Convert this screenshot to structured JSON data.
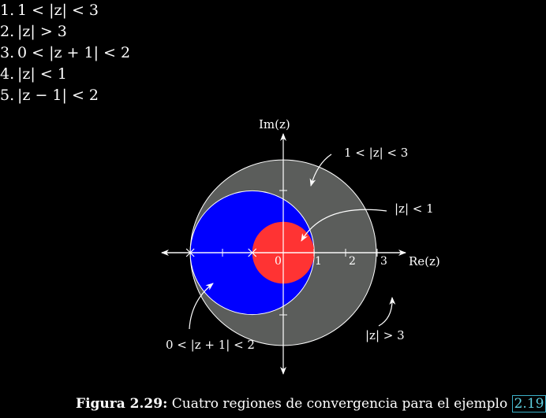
{
  "items": [
    {
      "num": "1.",
      "text": "1 < |z| < 3"
    },
    {
      "num": "2.",
      "text": "|z| > 3"
    },
    {
      "num": "3.",
      "text": "0 < |z + 1| < 2"
    },
    {
      "num": "4.",
      "text": "|z| < 1"
    },
    {
      "num": "5.",
      "text": "|z − 1| < 2"
    }
  ],
  "diagram": {
    "axis_x_label": "Re(z)",
    "axis_y_label": "Im(z)",
    "ticks": [
      {
        "value": 0,
        "label": "0"
      },
      {
        "value": 1,
        "label": "1"
      },
      {
        "value": 2,
        "label": "2"
      },
      {
        "value": 3,
        "label": "3"
      }
    ],
    "regions": [
      {
        "id": "annulus",
        "center": [
          0,
          0
        ],
        "r_outer": 3,
        "color": "#5b5d5b",
        "label": "1 < |z| < 3"
      },
      {
        "id": "punctured-disc",
        "center": [
          -1,
          0
        ],
        "radius": 2,
        "color": "#0000ff",
        "label": "0 < |z + 1| < 2"
      },
      {
        "id": "unit-disc",
        "center": [
          0,
          0
        ],
        "radius": 1,
        "color": "#ff3333",
        "label": "|z| < 1"
      },
      {
        "id": "exterior",
        "radius": 3,
        "label": "|z| > 3"
      }
    ],
    "poles": [
      -3,
      -1
    ]
  },
  "caption": {
    "label": "Figura 2.29:",
    "text": " Cuatro regiones de convergencia para el ejemplo ",
    "ref": "2.19"
  }
}
